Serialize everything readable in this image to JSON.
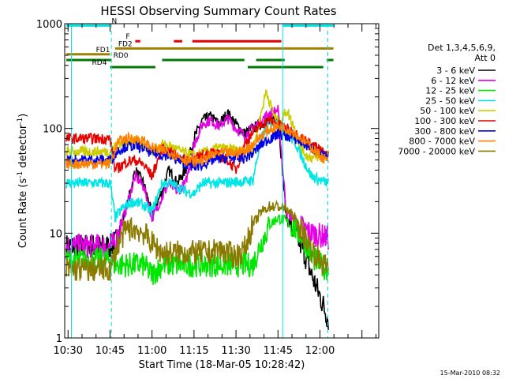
{
  "chart_data": {
    "type": "line",
    "title": "HESSI Observing Summary Count Rates",
    "xlabel": "Start Time (18-Mar-05 10:28:42)",
    "ylabel_main": "Count Rate (s",
    "ylabel_sup1": "-1",
    "ylabel_mid": " detector",
    "ylabel_sup2": "-1",
    "ylabel_end": ")",
    "y_scale": "log",
    "ylim": [
      1,
      1000
    ],
    "xlim_minutes": [
      10.48,
      12.35
    ],
    "x_ticks": [
      {
        "label": "10:30",
        "value": 10.5
      },
      {
        "label": "10:45",
        "value": 10.75
      },
      {
        "label": "11:00",
        "value": 11.0
      },
      {
        "label": "11:15",
        "value": 11.25
      },
      {
        "label": "11:30",
        "value": 11.5
      },
      {
        "label": "11:45",
        "value": 11.75
      },
      {
        "label": "12:00",
        "value": 12.0
      }
    ],
    "y_ticks": [
      {
        "label": "1",
        "value": 1
      },
      {
        "label": "10",
        "value": 10
      },
      {
        "label": "100",
        "value": 100
      },
      {
        "label": "1000",
        "value": 1000
      }
    ],
    "legend_header": [
      "Det 1,3,4,5,6,9,",
      "Att 0"
    ],
    "legend_position": "right",
    "vertical_lines": [
      {
        "x": 10.52,
        "style": "solid"
      },
      {
        "x": 10.758,
        "style": "dashed"
      },
      {
        "x": 11.778,
        "style": "solid"
      },
      {
        "x": 12.047,
        "style": "dashed"
      }
    ],
    "flags": [
      {
        "label": "N",
        "color": "#00e5e5",
        "y": 960,
        "segments": [
          [
            10.49,
            10.75
          ],
          [
            11.78,
            12.08
          ]
        ]
      },
      {
        "label": "F",
        "color": "#e60000",
        "y": 680,
        "segments": [
          [
            10.9,
            10.93
          ],
          [
            11.13,
            11.18
          ],
          [
            11.24,
            11.77
          ]
        ]
      },
      {
        "label": "FD1",
        "color": "#a08000",
        "y": 510,
        "segments": [
          [
            10.49,
            10.75
          ]
        ]
      },
      {
        "label": "FD2",
        "color": "#a08000",
        "y": 580,
        "segments": [
          [
            10.78,
            12.08
          ]
        ]
      },
      {
        "label": "RD0",
        "color": "#007a00",
        "y": 450,
        "segments": [
          [
            10.49,
            10.76
          ],
          [
            11.06,
            11.55
          ],
          [
            11.62,
            11.79
          ],
          [
            12.04,
            12.08
          ]
        ]
      },
      {
        "label": "RD4",
        "color": "#007a00",
        "y": 385,
        "segments": [
          [
            10.75,
            11.02
          ],
          [
            11.57,
            12.02
          ]
        ]
      }
    ],
    "series": [
      {
        "name": "3 - 6 keV",
        "color": "#000000",
        "x": [
          10.49,
          10.75,
          10.78,
          10.85,
          10.9,
          10.95,
          11.0,
          11.06,
          11.1,
          11.15,
          11.2,
          11.25,
          11.3,
          11.35,
          11.4,
          11.45,
          11.5,
          11.55,
          11.6,
          11.65,
          11.7,
          11.75,
          11.8,
          11.85,
          11.9,
          11.95,
          12.0,
          12.05
        ],
        "values": [
          7.5,
          7.5,
          8,
          18,
          40,
          30,
          15,
          25,
          40,
          30,
          40,
          80,
          120,
          130,
          110,
          140,
          110,
          90,
          100,
          110,
          120,
          130,
          14,
          10,
          7,
          4,
          2.5,
          1.5
        ]
      },
      {
        "name": "6 - 12 keV",
        "color": "#e600e6",
        "x": [
          10.49,
          10.75,
          10.78,
          10.85,
          10.9,
          10.95,
          11.0,
          11.06,
          11.1,
          11.15,
          11.2,
          11.25,
          11.3,
          11.35,
          11.4,
          11.45,
          11.5,
          11.55,
          11.6,
          11.65,
          11.7,
          11.75,
          11.8,
          11.85,
          11.9,
          11.95,
          12.0,
          12.05
        ],
        "values": [
          7.5,
          7.5,
          8,
          18,
          35,
          28,
          14,
          22,
          30,
          25,
          30,
          70,
          110,
          120,
          105,
          125,
          100,
          85,
          100,
          120,
          140,
          150,
          16,
          13,
          11,
          10,
          9.5,
          9
        ]
      },
      {
        "name": "12 - 25 keV",
        "color": "#00e600",
        "x": [
          10.49,
          10.75,
          10.78,
          10.85,
          10.9,
          10.95,
          11.0,
          11.06,
          11.1,
          11.2,
          11.3,
          11.4,
          11.5,
          11.6,
          11.65,
          11.7,
          11.75,
          11.8,
          11.85,
          11.9,
          11.95,
          12.0,
          12.05
        ],
        "values": [
          5.5,
          5.5,
          5,
          5,
          5,
          5,
          4,
          5,
          5,
          5,
          5,
          5,
          5,
          5,
          8,
          12,
          14,
          13,
          11,
          9,
          6,
          5,
          4.5
        ]
      },
      {
        "name": "25 - 50 keV",
        "color": "#00e5e5",
        "x": [
          10.49,
          10.75,
          10.78,
          10.82,
          10.88,
          10.94,
          11.0,
          11.06,
          11.1,
          11.15,
          11.2,
          11.25,
          11.3,
          11.4,
          11.5,
          11.55,
          11.6,
          11.65,
          11.7,
          11.75,
          11.8,
          11.85,
          11.9,
          11.95,
          12.0,
          12.05
        ],
        "values": [
          30,
          30,
          14,
          17,
          20,
          19,
          16,
          30,
          30,
          28,
          25,
          24,
          30,
          30,
          31,
          31,
          32,
          80,
          110,
          115,
          90,
          75,
          50,
          35,
          32,
          30
        ]
      },
      {
        "name": "50 - 100 keV",
        "color": "#cccc00",
        "x": [
          10.49,
          10.75,
          10.8,
          10.85,
          10.9,
          10.95,
          11.0,
          11.06,
          11.1,
          11.15,
          11.2,
          11.25,
          11.3,
          11.35,
          11.4,
          11.5,
          11.55,
          11.6,
          11.65,
          11.68,
          11.72,
          11.76,
          11.8,
          11.84,
          11.88,
          11.92,
          11.96,
          12.0,
          12.05
        ],
        "values": [
          60,
          60,
          72,
          75,
          75,
          70,
          60,
          70,
          68,
          63,
          58,
          55,
          58,
          62,
          65,
          62,
          60,
          62,
          140,
          230,
          140,
          110,
          150,
          110,
          70,
          55,
          52,
          55,
          58
        ]
      },
      {
        "name": "100 - 300 keV",
        "color": "#e60000",
        "x": [
          10.49,
          10.75,
          10.78,
          10.85,
          10.9,
          10.95,
          11.0,
          11.06,
          11.1,
          11.15,
          11.2,
          11.25,
          11.3,
          11.35,
          11.4,
          11.45,
          11.5,
          11.55,
          11.6,
          11.65,
          11.7,
          11.75,
          11.8,
          11.85,
          11.9,
          11.95,
          12.0,
          12.05
        ],
        "values": [
          80,
          80,
          40,
          48,
          50,
          45,
          35,
          65,
          60,
          55,
          50,
          50,
          55,
          60,
          55,
          50,
          40,
          70,
          90,
          110,
          120,
          110,
          100,
          90,
          80,
          70,
          62,
          55
        ]
      },
      {
        "name": "300 - 800 keV",
        "color": "#0000e6",
        "x": [
          10.49,
          10.75,
          10.8,
          10.85,
          10.9,
          10.95,
          11.0,
          11.06,
          11.1,
          11.15,
          11.2,
          11.25,
          11.3,
          11.35,
          11.4,
          11.5,
          11.55,
          11.6,
          11.65,
          11.7,
          11.75,
          11.8,
          11.85,
          11.9,
          11.95,
          12.0,
          12.05
        ],
        "values": [
          50,
          50,
          62,
          68,
          68,
          65,
          58,
          56,
          55,
          50,
          46,
          43,
          45,
          49,
          52,
          52,
          52,
          58,
          70,
          80,
          88,
          85,
          80,
          72,
          65,
          57,
          50
        ]
      },
      {
        "name": "800 - 7000 keV",
        "color": "#ff8000",
        "x": [
          10.49,
          10.75,
          10.8,
          10.85,
          10.9,
          10.95,
          11.0,
          11.06,
          11.1,
          11.15,
          11.2,
          11.25,
          11.3,
          11.35,
          11.4,
          11.5,
          11.55,
          11.6,
          11.65,
          11.7,
          11.75,
          11.8,
          11.85,
          11.9,
          11.95,
          12.0,
          12.05
        ],
        "values": [
          46,
          46,
          75,
          80,
          80,
          75,
          65,
          62,
          60,
          55,
          50,
          48,
          50,
          55,
          58,
          58,
          62,
          70,
          85,
          98,
          105,
          100,
          90,
          78,
          66,
          55,
          48
        ]
      },
      {
        "name": "7000 - 20000 keV",
        "color": "#8a7a00",
        "x": [
          10.49,
          10.75,
          10.8,
          10.85,
          10.9,
          10.95,
          11.0,
          11.06,
          11.1,
          11.15,
          11.2,
          11.25,
          11.3,
          11.35,
          11.4,
          11.5,
          11.55,
          11.6,
          11.65,
          11.7,
          11.75,
          11.8,
          11.85,
          11.9,
          11.95,
          12.0,
          12.05
        ],
        "values": [
          4.5,
          4.5,
          8,
          11,
          11,
          10,
          8,
          6.5,
          6.5,
          6.5,
          6.5,
          6.5,
          6.5,
          6.5,
          7,
          6,
          7,
          12,
          16,
          18,
          18,
          17,
          14,
          10,
          7,
          5.5,
          4.5
        ]
      }
    ]
  },
  "footer": {
    "timestamp": "15-Mar-2010 08:32"
  }
}
